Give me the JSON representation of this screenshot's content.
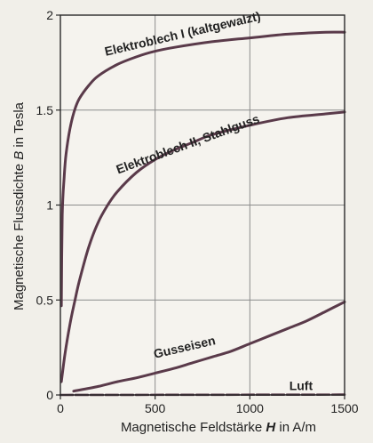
{
  "chart_data": {
    "type": "line",
    "xlabel_parts": [
      "Magnetische Feldstärke ",
      "H",
      " in A/m"
    ],
    "ylabel_parts": [
      "Magnetische Flussdichte ",
      "B",
      " in Tesla"
    ],
    "xlim": [
      0,
      1500
    ],
    "ylim": [
      0,
      2
    ],
    "x_ticks": [
      0,
      500,
      1000,
      1500
    ],
    "y_ticks": [
      0,
      0.5,
      1,
      1.5,
      2
    ],
    "x_tick_labels": [
      "0",
      "500",
      "1000",
      "1500"
    ],
    "y_tick_labels": [
      "0",
      "0.5",
      "1",
      "1.5",
      "2"
    ],
    "grid": true,
    "series": [
      {
        "name": "Elektroblech I (kaltgewalzt)",
        "x": [
          5,
          10,
          20,
          30,
          50,
          75,
          100,
          150,
          200,
          300,
          400,
          500,
          600,
          800,
          1000,
          1200,
          1400,
          1500
        ],
        "y": [
          0.47,
          0.95,
          1.15,
          1.27,
          1.4,
          1.5,
          1.56,
          1.63,
          1.68,
          1.74,
          1.78,
          1.81,
          1.83,
          1.86,
          1.88,
          1.9,
          1.91,
          1.91
        ]
      },
      {
        "name": "Elektroblech II, Stahlguss",
        "x": [
          5,
          25,
          50,
          75,
          100,
          150,
          200,
          250,
          300,
          400,
          500,
          600,
          700,
          800,
          1000,
          1200,
          1400,
          1500
        ],
        "y": [
          0.07,
          0.22,
          0.37,
          0.49,
          0.6,
          0.78,
          0.91,
          1.0,
          1.07,
          1.17,
          1.24,
          1.29,
          1.33,
          1.37,
          1.42,
          1.46,
          1.48,
          1.49
        ]
      },
      {
        "name": "Gusseisen",
        "x": [
          70,
          200,
          300,
          400,
          500,
          600,
          700,
          800,
          900,
          1000,
          1100,
          1200,
          1300,
          1400,
          1500
        ],
        "y": [
          0.02,
          0.045,
          0.07,
          0.09,
          0.115,
          0.14,
          0.17,
          0.2,
          0.23,
          0.27,
          0.31,
          0.35,
          0.39,
          0.44,
          0.49
        ]
      },
      {
        "name": "Luft",
        "x": [
          0,
          1500
        ],
        "y": [
          0,
          0.002
        ]
      }
    ],
    "labels": [
      {
        "text": "Elektroblech I (kaltgewalzt)",
        "x": 650,
        "y": 1.88,
        "angle": -13
      },
      {
        "text": "Elektroblech II, Stahlguss",
        "x": 680,
        "y": 1.3,
        "angle": -20
      },
      {
        "text": "Gusseisen",
        "x": 660,
        "y": 0.23,
        "angle": -13
      },
      {
        "text": "Luft",
        "x": 1270,
        "y": 0.025,
        "angle": 0
      }
    ]
  },
  "colors": {
    "background": "#f1efe9",
    "curve": "#5a3a4a",
    "grid": "#8c8c8c",
    "axis": "#2a2a2a",
    "text": "#222222"
  }
}
